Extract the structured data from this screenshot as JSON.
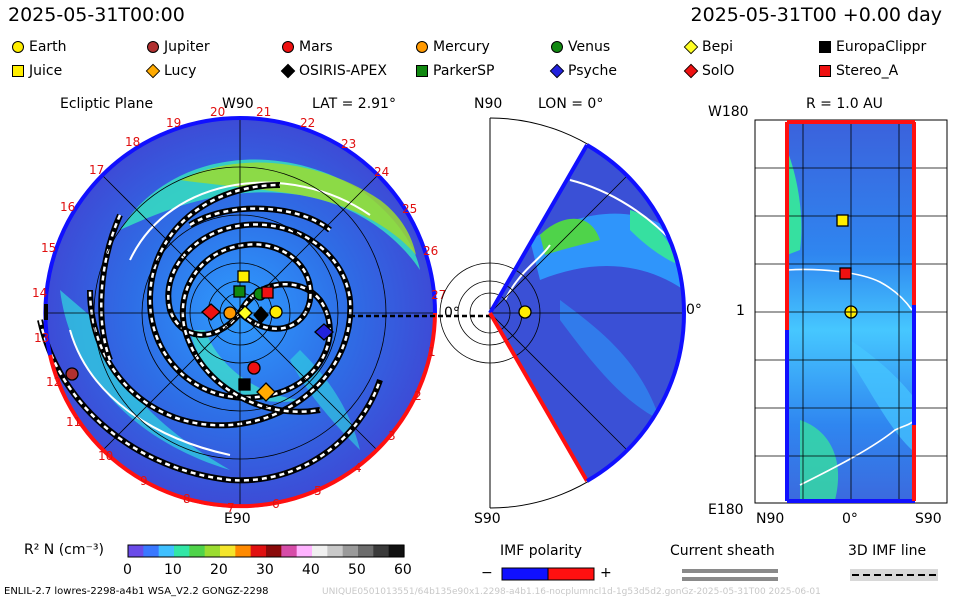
{
  "header": {
    "left_datetime": "2025-05-31T00:00",
    "right_datetime": "2025-05-31T00 +0.00 day"
  },
  "legend": {
    "items": [
      {
        "label": "Earth",
        "shape": "circle",
        "color": "#ffee00"
      },
      {
        "label": "Jupiter",
        "shape": "circle",
        "color": "#b03030"
      },
      {
        "label": "Mars",
        "shape": "circle",
        "color": "#ee1111"
      },
      {
        "label": "Mercury",
        "shape": "circle",
        "color": "#ff9900"
      },
      {
        "label": "Venus",
        "shape": "circle",
        "color": "#118811"
      },
      {
        "label": "Bepi",
        "shape": "diamond",
        "color": "#ffff22"
      },
      {
        "label": "EuropaClippr",
        "shape": "square",
        "color": "#000000"
      },
      {
        "label": "Juice",
        "shape": "square",
        "color": "#ffee00"
      },
      {
        "label": "Lucy",
        "shape": "diamond",
        "color": "#ffaa00"
      },
      {
        "label": "OSIRIS-APEX",
        "shape": "diamond",
        "color": "#000000"
      },
      {
        "label": "ParkerSP",
        "shape": "square",
        "color": "#118811"
      },
      {
        "label": "Psyche",
        "shape": "diamond",
        "color": "#2222dd"
      },
      {
        "label": "SolO",
        "shape": "diamond",
        "color": "#ee1111"
      },
      {
        "label": "Stereo_A",
        "shape": "square",
        "color": "#ee1111"
      }
    ]
  },
  "panels": {
    "ecliptic": {
      "title": "Ecliptic Plane",
      "top_label": "W90",
      "lat_label": "LAT = 2.91°",
      "bottom_label": "E90",
      "right_label": "0°",
      "sectors": [
        "20",
        "21",
        "22",
        "23",
        "24",
        "25",
        "26",
        "27",
        "1",
        "2",
        "3",
        "4",
        "5",
        "6",
        "7",
        "8",
        "9",
        "10",
        "11",
        "12",
        "13",
        "14",
        "15",
        "16",
        "17",
        "18",
        "19"
      ]
    },
    "meridional": {
      "top_label": "N90",
      "lon_label": "LON = 0°",
      "bottom_label": "S90",
      "right_label": "0°"
    },
    "radial": {
      "title": "R = 1.0 AU",
      "top_left_label": "W180",
      "mid_left_label": "1",
      "bottom_left_label": "E180",
      "bottom_labels": [
        "N90",
        "0°",
        "S90"
      ]
    }
  },
  "colorbar": {
    "label": "R² N (cm⁻³)",
    "ticks": [
      "0",
      "10",
      "20",
      "30",
      "40",
      "50",
      "60"
    ],
    "min": 0,
    "max": 60,
    "colors": [
      "#6a4be8",
      "#3a78ff",
      "#3fc0ff",
      "#32e6a6",
      "#4fd34a",
      "#9bdc30",
      "#f4e52b",
      "#ff8a00",
      "#e01010",
      "#8a0a0a",
      "#d64ca8",
      "#ffb3ff",
      "#f0f0f0",
      "#c9c9c9",
      "#9a9a9a",
      "#6c6c6c",
      "#3a3a3a",
      "#111111"
    ]
  },
  "imf_polarity": {
    "title": "IMF polarity",
    "minus": "−",
    "plus": "+",
    "negative_color": "#1010ff",
    "positive_color": "#ff1010"
  },
  "current_sheath": {
    "title": "Current sheath",
    "color": "#8a8a8a"
  },
  "imf_line": {
    "title": "3D IMF line"
  },
  "footer": {
    "left_text": "ENLIL-2.7 lowres-2298-a4b1 WSA_V2.2 GONGZ-2298",
    "right_text": "UNIQUE0501013551/64b135e90x1.2298-a4b1.16-nocplumncl1d-1g53d5d2.gonGz-2025-05-31T00   2025-06-01"
  },
  "chart_data": {
    "type": "heatmap",
    "title": "Ecliptic Plane",
    "colorbar_label": "R² N (cm⁻³)",
    "colorbar_range": [
      0,
      60
    ],
    "positions_shown": [
      "Earth",
      "Jupiter",
      "Mars",
      "Mercury",
      "Venus",
      "Bepi",
      "EuropaClippr",
      "Juice",
      "Lucy",
      "OSIRIS-APEX",
      "ParkerSP",
      "Psyche",
      "SolO",
      "Stereo_A"
    ]
  }
}
